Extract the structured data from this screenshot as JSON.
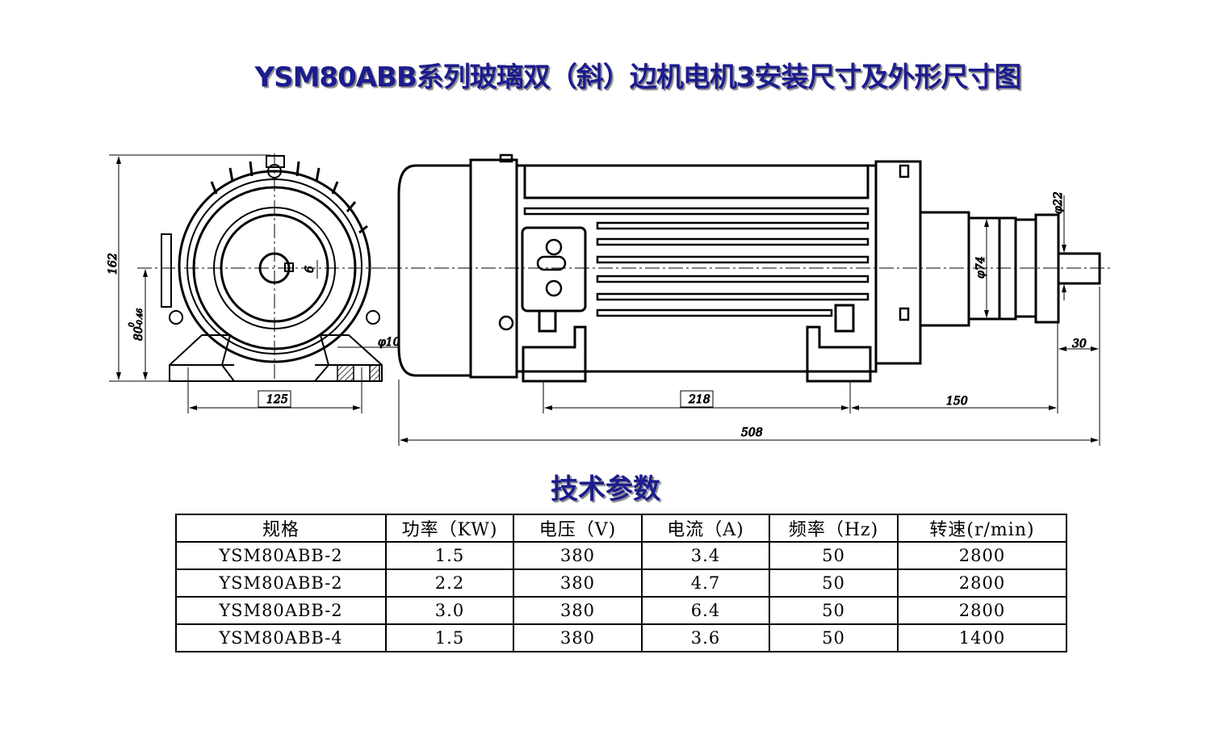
{
  "title": "YSM80ABB系列玻璃双（斜）边机电机3安装尺寸及外形尺寸图",
  "drawing": {
    "dimensions": {
      "height_total": "162",
      "shaft_height": "80",
      "shaft_height_tol_upper": "0",
      "shaft_height_tol_lower": "-0.46",
      "key_width": "6",
      "foot_hole": "φ10",
      "foot_spacing_end": "125",
      "foot_spacing_side": "218",
      "shaft_to_foot": "150",
      "overall_length": "508",
      "shaft_length": "30",
      "flange_diameter": "φ74",
      "shaft_diameter": "φ22"
    }
  },
  "spec_title": "技术参数",
  "table": {
    "headers": [
      "规格",
      "功率（KW)",
      "电压（V)",
      "电流（A)",
      "频率（Hz)",
      "转速(r/min)"
    ],
    "rows": [
      [
        "YSM80ABB-2",
        "1.5",
        "380",
        "3.4",
        "50",
        "2800"
      ],
      [
        "YSM80ABB-2",
        "2.2",
        "380",
        "4.7",
        "50",
        "2800"
      ],
      [
        "YSM80ABB-2",
        "3.0",
        "380",
        "6.4",
        "50",
        "2800"
      ],
      [
        "YSM80ABB-4",
        "1.5",
        "380",
        "3.6",
        "50",
        "1400"
      ]
    ]
  },
  "colors": {
    "title": "#1c1c8e",
    "lines": "#000000"
  }
}
